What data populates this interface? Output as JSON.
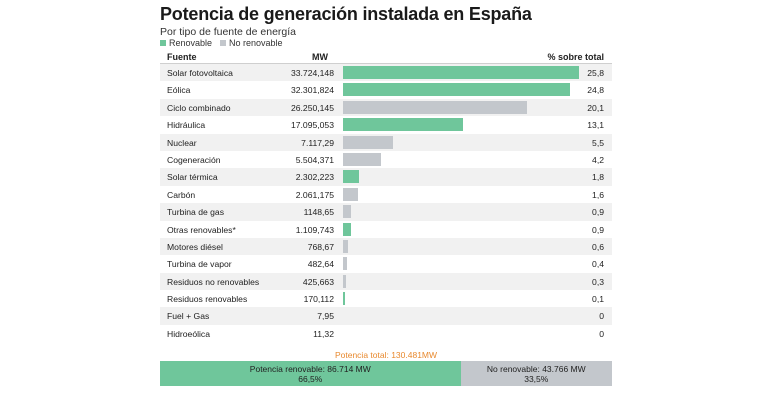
{
  "title": "Potencia de generación instalada en España",
  "subtitle": "Por tipo de fuente de energía",
  "legend": {
    "renewable": "Renovable",
    "non_renewable": "No renovable"
  },
  "colors": {
    "renewable": "#6fc69b",
    "non_renewable": "#c3c7cc",
    "total_label": "#e8892e"
  },
  "headers": {
    "source": "Fuente",
    "mw": "MW",
    "pct": "% sobre total"
  },
  "chart_data": {
    "type": "bar",
    "title": "Potencia de generación instalada en España",
    "subtitle": "Por tipo de fuente de energía",
    "xlabel": "% sobre total",
    "ylabel": "Fuente",
    "xlim": [
      0,
      25.8
    ],
    "categories": [
      "Solar fotovoltaica",
      "Eólica",
      "Ciclo combinado",
      "Hidráulica",
      "Nuclear",
      "Cogeneración",
      "Solar térmica",
      "Carbón",
      "Turbina de gas",
      "Otras renovables*",
      "Motores diésel",
      "Turbina de vapor",
      "Residuos no renovables",
      "Residuos renovables",
      "Fuel + Gas",
      "Hidroeólica"
    ],
    "rows": [
      {
        "name": "Solar fotovoltaica",
        "mw": "33.724,148",
        "pct_label": "25,8",
        "pct": 25.8,
        "renewable": true
      },
      {
        "name": "Eólica",
        "mw": "32.301,824",
        "pct_label": "24,8",
        "pct": 24.8,
        "renewable": true
      },
      {
        "name": "Ciclo combinado",
        "mw": "26.250,145",
        "pct_label": "20,1",
        "pct": 20.1,
        "renewable": false
      },
      {
        "name": "Hidráulica",
        "mw": "17.095,053",
        "pct_label": "13,1",
        "pct": 13.1,
        "renewable": true
      },
      {
        "name": "Nuclear",
        "mw": "7.117,29",
        "pct_label": "5,5",
        "pct": 5.5,
        "renewable": false
      },
      {
        "name": "Cogeneración",
        "mw": "5.504,371",
        "pct_label": "4,2",
        "pct": 4.2,
        "renewable": false
      },
      {
        "name": "Solar térmica",
        "mw": "2.302,223",
        "pct_label": "1,8",
        "pct": 1.8,
        "renewable": true
      },
      {
        "name": "Carbón",
        "mw": "2.061,175",
        "pct_label": "1,6",
        "pct": 1.6,
        "renewable": false
      },
      {
        "name": "Turbina de gas",
        "mw": "1148,65",
        "pct_label": "0,9",
        "pct": 0.9,
        "renewable": false
      },
      {
        "name": "Otras renovables*",
        "mw": "1.109,743",
        "pct_label": "0,9",
        "pct": 0.9,
        "renewable": true
      },
      {
        "name": "Motores diésel",
        "mw": "768,67",
        "pct_label": "0,6",
        "pct": 0.6,
        "renewable": false
      },
      {
        "name": "Turbina de vapor",
        "mw": "482,64",
        "pct_label": "0,4",
        "pct": 0.4,
        "renewable": false
      },
      {
        "name": "Residuos no renovables",
        "mw": "425,663",
        "pct_label": "0,3",
        "pct": 0.3,
        "renewable": false
      },
      {
        "name": "Residuos renovables",
        "mw": "170,112",
        "pct_label": "0,1",
        "pct": 0.1,
        "renewable": true
      },
      {
        "name": "Fuel + Gas",
        "mw": "7,95",
        "pct_label": "0",
        "pct": 0,
        "renewable": false
      },
      {
        "name": "Hidroeólica",
        "mw": "11,32",
        "pct_label": "0",
        "pct": 0,
        "renewable": true
      }
    ]
  },
  "totals": {
    "label": "Potencia total: 130.481MW",
    "renewable_label": "Potencia renovable: 86.714 MW",
    "renewable_pct_label": "66,5%",
    "renewable_share": 66.5,
    "non_renewable_label": "No renovable: 43.766 MW",
    "non_renewable_pct_label": "33,5%",
    "non_renewable_share": 33.5
  }
}
